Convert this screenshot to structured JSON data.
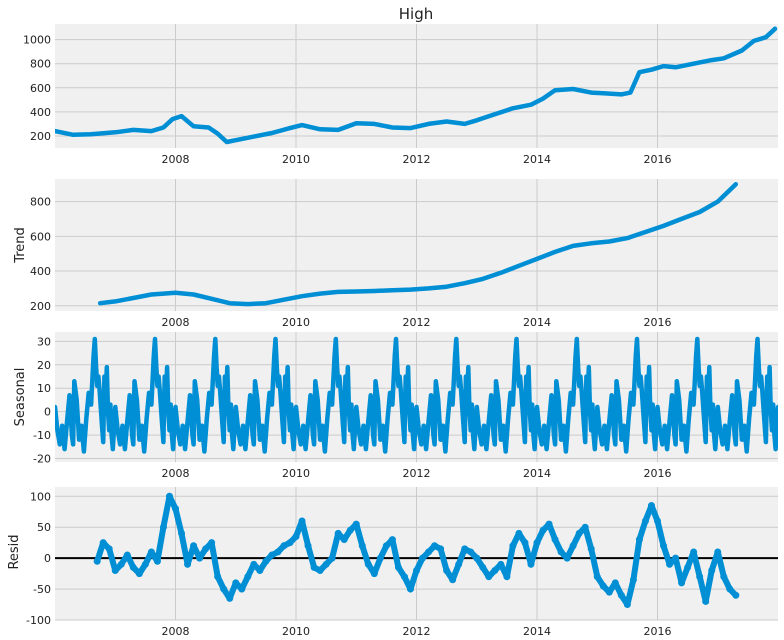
{
  "chart_data": [
    {
      "type": "line",
      "title": "High",
      "ylabel": "",
      "xlim": [
        2006.0,
        2018.0
      ],
      "ylim": [
        100,
        1130
      ],
      "yticks": [
        200,
        400,
        600,
        800,
        1000
      ],
      "xticks": [
        2008,
        2010,
        2012,
        2014,
        2016
      ],
      "grid": true,
      "x": [
        2006.0,
        2006.3,
        2006.6,
        2007.0,
        2007.3,
        2007.6,
        2007.8,
        2007.95,
        2008.1,
        2008.3,
        2008.55,
        2008.7,
        2008.85,
        2009.0,
        2009.3,
        2009.6,
        2009.9,
        2010.1,
        2010.4,
        2010.7,
        2011.0,
        2011.3,
        2011.6,
        2011.9,
        2012.2,
        2012.5,
        2012.8,
        2013.0,
        2013.3,
        2013.6,
        2013.9,
        2014.1,
        2014.3,
        2014.6,
        2014.9,
        2015.1,
        2015.4,
        2015.55,
        2015.7,
        2015.9,
        2016.1,
        2016.3,
        2016.6,
        2016.9,
        2017.1,
        2017.4,
        2017.6,
        2017.8,
        2017.95
      ],
      "y": [
        240,
        210,
        215,
        230,
        250,
        240,
        270,
        340,
        365,
        280,
        270,
        220,
        150,
        165,
        195,
        225,
        265,
        290,
        255,
        250,
        305,
        300,
        270,
        265,
        300,
        320,
        300,
        330,
        380,
        430,
        460,
        510,
        580,
        590,
        560,
        555,
        545,
        560,
        730,
        750,
        780,
        770,
        800,
        830,
        845,
        910,
        990,
        1020,
        1090
      ]
    },
    {
      "type": "line",
      "title": "",
      "ylabel": "Trend",
      "xlim": [
        2006.0,
        2018.0
      ],
      "ylim": [
        170,
        930
      ],
      "yticks": [
        200,
        400,
        600,
        800
      ],
      "xticks": [
        2008,
        2010,
        2012,
        2014,
        2016
      ],
      "grid": true,
      "x": [
        2006.75,
        2007.0,
        2007.3,
        2007.6,
        2008.0,
        2008.3,
        2008.6,
        2008.9,
        2009.2,
        2009.5,
        2009.8,
        2010.1,
        2010.4,
        2010.7,
        2011.0,
        2011.3,
        2011.6,
        2011.9,
        2012.2,
        2012.5,
        2012.8,
        2013.1,
        2013.4,
        2013.7,
        2014.0,
        2014.3,
        2014.6,
        2014.9,
        2015.2,
        2015.5,
        2015.8,
        2016.1,
        2016.4,
        2016.7,
        2017.0,
        2017.3
      ],
      "y": [
        215,
        225,
        245,
        265,
        275,
        265,
        240,
        215,
        210,
        215,
        235,
        255,
        270,
        280,
        282,
        285,
        290,
        293,
        300,
        310,
        330,
        355,
        390,
        430,
        470,
        510,
        545,
        560,
        570,
        590,
        625,
        660,
        700,
        740,
        800,
        900
      ]
    },
    {
      "type": "line",
      "title": "",
      "ylabel": "Seasonal",
      "xlim": [
        2006.0,
        2018.0
      ],
      "ylim": [
        -21.5,
        34
      ],
      "yticks": [
        -20,
        -10,
        0,
        10,
        20,
        30
      ],
      "xticks": [
        2008,
        2010,
        2012,
        2014,
        2016
      ],
      "grid": true,
      "period": 1.0,
      "cycle_x": [
        0.0,
        0.04,
        0.08,
        0.12,
        0.16,
        0.2,
        0.24,
        0.28,
        0.3,
        0.32,
        0.36,
        0.4,
        0.44,
        0.48,
        0.52,
        0.56,
        0.6,
        0.64,
        0.66,
        0.68,
        0.7,
        0.72,
        0.74,
        0.78,
        0.8,
        0.82,
        0.84,
        0.86,
        0.88,
        0.9,
        0.92,
        0.94,
        0.96,
        1.0
      ],
      "cycle_y": [
        2,
        -8,
        -14,
        -6,
        -16,
        -4,
        7,
        -10,
        -14,
        13,
        5,
        -12,
        -6,
        -17,
        -3,
        8,
        3,
        24,
        31,
        20,
        11,
        15,
        9,
        -6,
        -13,
        15,
        4,
        19,
        0,
        -8,
        3,
        -10,
        -16,
        2
      ]
    },
    {
      "type": "scatter",
      "title": "",
      "ylabel": "Resid",
      "xlim": [
        2006.0,
        2018.0
      ],
      "ylim": [
        -100,
        115
      ],
      "yticks": [
        -100,
        -50,
        0,
        50,
        100
      ],
      "xticks": [
        2008,
        2010,
        2012,
        2014,
        2016
      ],
      "grid": true,
      "zero_line": true,
      "x": [
        2006.7,
        2006.8,
        2006.9,
        2007.0,
        2007.1,
        2007.2,
        2007.3,
        2007.4,
        2007.5,
        2007.6,
        2007.7,
        2007.8,
        2007.9,
        2008.0,
        2008.1,
        2008.2,
        2008.3,
        2008.4,
        2008.5,
        2008.6,
        2008.7,
        2008.8,
        2008.9,
        2009.0,
        2009.1,
        2009.2,
        2009.3,
        2009.4,
        2009.5,
        2009.6,
        2009.7,
        2009.8,
        2009.9,
        2010.0,
        2010.1,
        2010.2,
        2010.3,
        2010.4,
        2010.5,
        2010.6,
        2010.7,
        2010.8,
        2010.9,
        2011.0,
        2011.1,
        2011.2,
        2011.3,
        2011.4,
        2011.5,
        2011.6,
        2011.7,
        2011.8,
        2011.9,
        2012.0,
        2012.1,
        2012.2,
        2012.3,
        2012.4,
        2012.5,
        2012.6,
        2012.7,
        2012.8,
        2012.9,
        2013.0,
        2013.1,
        2013.2,
        2013.3,
        2013.4,
        2013.5,
        2013.6,
        2013.7,
        2013.8,
        2013.9,
        2014.0,
        2014.1,
        2014.2,
        2014.3,
        2014.4,
        2014.5,
        2014.6,
        2014.7,
        2014.8,
        2014.9,
        2015.0,
        2015.1,
        2015.2,
        2015.3,
        2015.4,
        2015.5,
        2015.6,
        2015.7,
        2015.8,
        2015.9,
        2016.0,
        2016.1,
        2016.2,
        2016.3,
        2016.4,
        2016.5,
        2016.6,
        2016.7,
        2016.8,
        2016.9,
        2017.0,
        2017.1,
        2017.2,
        2017.3
      ],
      "y": [
        -5,
        25,
        15,
        -20,
        -10,
        5,
        -15,
        -25,
        -10,
        10,
        -5,
        50,
        100,
        80,
        40,
        -10,
        20,
        0,
        15,
        25,
        -30,
        -50,
        -65,
        -40,
        -50,
        -30,
        -10,
        -20,
        -5,
        5,
        10,
        20,
        25,
        35,
        60,
        20,
        -15,
        -20,
        -10,
        0,
        40,
        30,
        45,
        55,
        20,
        -10,
        -25,
        0,
        20,
        30,
        -15,
        -30,
        -50,
        -20,
        0,
        10,
        20,
        15,
        -20,
        -35,
        -10,
        15,
        10,
        0,
        -15,
        -30,
        -20,
        -10,
        -30,
        20,
        40,
        25,
        -10,
        25,
        45,
        55,
        30,
        10,
        0,
        20,
        40,
        50,
        15,
        -30,
        -45,
        -55,
        -40,
        -60,
        -75,
        -35,
        30,
        60,
        85,
        60,
        20,
        -10,
        0,
        -40,
        -15,
        10,
        -30,
        -70,
        -20,
        10,
        -30,
        -50,
        -60
      ]
    }
  ]
}
